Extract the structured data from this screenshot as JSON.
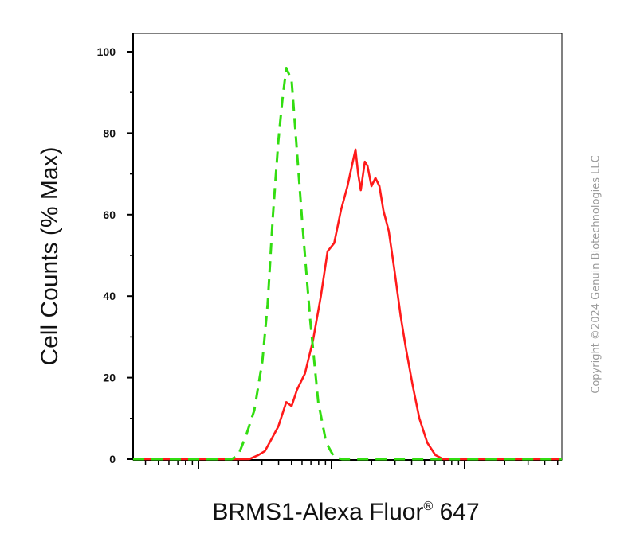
{
  "chart_data": {
    "type": "line",
    "ylabel": "Cell Counts (% Max)",
    "xlabel": {
      "main": "BRMS1-Alexa Fluor",
      "reg": "®",
      "tail": " 647"
    },
    "xscale": "log",
    "ylim": [
      0,
      105
    ],
    "yticks": [
      0,
      20,
      40,
      60,
      80,
      100
    ],
    "grid": false,
    "colors": {
      "sample": "#ff1a1a",
      "control": "#33dd11",
      "axis": "#000000"
    },
    "series": [
      {
        "line_style": "solid",
        "color": "#ff1a1a",
        "points": [
          [
            -0.5,
            0
          ],
          [
            0.3,
            0
          ],
          [
            0.38,
            0
          ],
          [
            0.45,
            1
          ],
          [
            0.5,
            2
          ],
          [
            0.55,
            5
          ],
          [
            0.6,
            8
          ],
          [
            0.63,
            11
          ],
          [
            0.66,
            14
          ],
          [
            0.7,
            13
          ],
          [
            0.74,
            17
          ],
          [
            0.8,
            21
          ],
          [
            0.86,
            29
          ],
          [
            0.92,
            40
          ],
          [
            0.97,
            51
          ],
          [
            1.02,
            53
          ],
          [
            1.07,
            61
          ],
          [
            1.12,
            67
          ],
          [
            1.16,
            73
          ],
          [
            1.18,
            76
          ],
          [
            1.2,
            70
          ],
          [
            1.22,
            66
          ],
          [
            1.25,
            73
          ],
          [
            1.27,
            72
          ],
          [
            1.3,
            67
          ],
          [
            1.33,
            69
          ],
          [
            1.36,
            67
          ],
          [
            1.39,
            61
          ],
          [
            1.43,
            56
          ],
          [
            1.47,
            47
          ],
          [
            1.52,
            35
          ],
          [
            1.56,
            27
          ],
          [
            1.61,
            18
          ],
          [
            1.66,
            10
          ],
          [
            1.72,
            4
          ],
          [
            1.78,
            1
          ],
          [
            1.84,
            0
          ],
          [
            3.2,
            0
          ]
        ]
      },
      {
        "line_style": "dashed",
        "color": "#33dd11",
        "points": [
          [
            -0.5,
            0
          ],
          [
            0.25,
            0
          ],
          [
            0.3,
            1
          ],
          [
            0.36,
            6
          ],
          [
            0.42,
            12
          ],
          [
            0.48,
            24
          ],
          [
            0.52,
            38
          ],
          [
            0.56,
            60
          ],
          [
            0.6,
            78
          ],
          [
            0.63,
            88
          ],
          [
            0.66,
            96
          ],
          [
            0.7,
            93
          ],
          [
            0.73,
            80
          ],
          [
            0.78,
            58
          ],
          [
            0.84,
            34
          ],
          [
            0.9,
            14
          ],
          [
            0.96,
            4
          ],
          [
            1.02,
            0.5
          ],
          [
            1.08,
            0
          ],
          [
            3.2,
            0
          ]
        ]
      }
    ]
  },
  "watermark": "Copyright ©2024 Genuin Biotechnologies LLC"
}
